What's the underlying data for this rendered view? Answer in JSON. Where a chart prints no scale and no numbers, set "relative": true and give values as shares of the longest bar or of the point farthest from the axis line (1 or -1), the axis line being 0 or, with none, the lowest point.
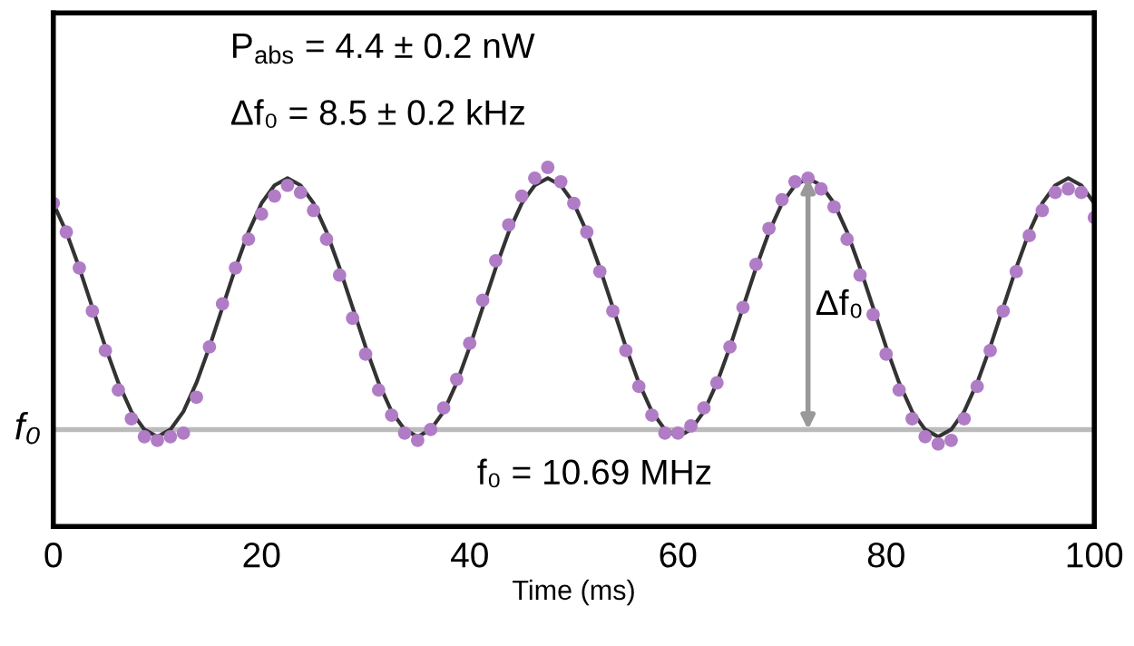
{
  "chart_data": {
    "type": "scatter",
    "relative": true,
    "xlabel": "Time (ms)",
    "xlim": [
      0,
      100
    ],
    "xticks": [
      0,
      20,
      40,
      60,
      80,
      100
    ],
    "grid": false,
    "series": [
      {
        "marker": "circle",
        "color": "#b07cc6",
        "x": [
          0,
          1.25,
          2.5,
          3.75,
          5,
          6.25,
          7.5,
          8.75,
          10,
          11.25,
          12.5,
          13.75,
          15,
          16.25,
          17.5,
          18.75,
          20,
          21.25,
          22.5,
          23.75,
          25,
          26.25,
          27.5,
          28.75,
          30,
          31.25,
          32.5,
          33.75,
          35,
          36.25,
          37.5,
          38.75,
          40,
          41.25,
          42.5,
          43.75,
          45,
          46.25,
          47.5,
          48.75,
          50,
          51.25,
          52.5,
          53.75,
          55,
          56.25,
          57.5,
          58.75,
          60,
          61.25,
          62.5,
          63.75,
          65,
          66.25,
          67.5,
          68.75,
          70,
          71.25,
          72.5,
          73.75,
          75,
          76.25,
          77.5,
          78.75,
          80,
          81.25,
          82.5,
          83.75,
          85,
          86.25,
          87.5,
          88.75,
          90,
          91.25,
          92.5,
          93.75,
          95,
          96.25,
          97.5,
          98.75,
          100
        ],
        "values": [
          0.9,
          0.82,
          0.72,
          0.6,
          0.49,
          0.38,
          0.3,
          0.25,
          0.24,
          0.25,
          0.26,
          0.36,
          0.5,
          0.62,
          0.72,
          0.8,
          0.87,
          0.92,
          0.95,
          0.93,
          0.88,
          0.8,
          0.7,
          0.58,
          0.48,
          0.38,
          0.31,
          0.26,
          0.24,
          0.27,
          0.33,
          0.41,
          0.51,
          0.63,
          0.74,
          0.84,
          0.92,
          0.97,
          1.0,
          0.96,
          0.9,
          0.82,
          0.71,
          0.6,
          0.49,
          0.39,
          0.31,
          0.26,
          0.26,
          0.28,
          0.33,
          0.4,
          0.5,
          0.61,
          0.73,
          0.83,
          0.91,
          0.96,
          0.97,
          0.94,
          0.89,
          0.8,
          0.7,
          0.59,
          0.48,
          0.38,
          0.3,
          0.25,
          0.23,
          0.24,
          0.3,
          0.39,
          0.49,
          0.6,
          0.71,
          0.81,
          0.88,
          0.93,
          0.94,
          0.93,
          0.86
        ]
      },
      {
        "type": "line",
        "color": "#333333",
        "x": [
          0,
          1.25,
          2.5,
          3.75,
          5,
          6.25,
          7.5,
          8.75,
          10,
          11.25,
          12.5,
          13.75,
          15,
          16.25,
          17.5,
          18.75,
          20,
          21.25,
          22.5,
          23.75,
          25,
          26.25,
          27.5,
          28.75,
          30,
          31.25,
          32.5,
          33.75,
          35,
          36.25,
          37.5,
          38.75,
          40,
          41.25,
          42.5,
          43.75,
          45,
          46.25,
          47.5,
          48.75,
          50,
          51.25,
          52.5,
          53.75,
          55,
          56.25,
          57.5,
          58.75,
          60,
          61.25,
          62.5,
          63.75,
          65,
          66.25,
          67.5,
          68.75,
          70,
          71.25,
          72.5,
          73.75,
          75,
          76.25,
          77.5,
          78.75,
          80,
          81.25,
          82.5,
          83.75,
          85,
          86.25,
          87.5,
          88.75,
          90,
          91.25,
          92.5,
          93.75,
          95,
          96.25,
          97.5,
          98.75,
          100
        ],
        "values": [
          0.9,
          0.82,
          0.72,
          0.61,
          0.5,
          0.4,
          0.32,
          0.27,
          0.25,
          0.27,
          0.32,
          0.4,
          0.5,
          0.61,
          0.72,
          0.82,
          0.9,
          0.95,
          0.97,
          0.95,
          0.9,
          0.82,
          0.72,
          0.61,
          0.5,
          0.4,
          0.32,
          0.27,
          0.25,
          0.27,
          0.32,
          0.4,
          0.5,
          0.61,
          0.72,
          0.82,
          0.9,
          0.95,
          0.97,
          0.95,
          0.9,
          0.82,
          0.72,
          0.61,
          0.5,
          0.4,
          0.32,
          0.27,
          0.25,
          0.27,
          0.32,
          0.4,
          0.5,
          0.61,
          0.72,
          0.82,
          0.9,
          0.95,
          0.97,
          0.95,
          0.9,
          0.82,
          0.72,
          0.61,
          0.5,
          0.4,
          0.32,
          0.27,
          0.25,
          0.27,
          0.32,
          0.4,
          0.5,
          0.61,
          0.72,
          0.82,
          0.9,
          0.95,
          0.97,
          0.95,
          0.9
        ]
      }
    ],
    "ref_lines": [
      {
        "axis": "y",
        "value": 0.27,
        "label": "f₀",
        "color": "#bbbbbb"
      }
    ],
    "annotations": [
      "P$_{abs}$ = 4.4 ± 0.2 nW",
      "Δf₀ = 8.5 ± 0.2 kHz",
      "Δf₀",
      "f₀ = 10.69 MHz"
    ]
  }
}
